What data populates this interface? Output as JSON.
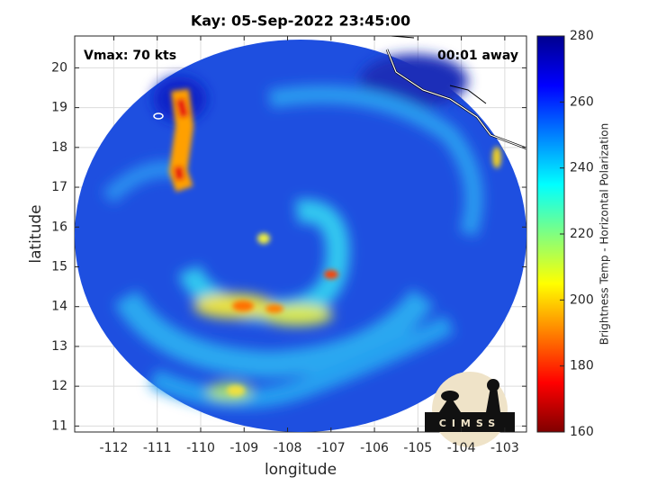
{
  "chart_data": {
    "type": "map",
    "title": "Kay: 05-Sep-2022 23:45:00",
    "annotations": [
      "Vmax: 70 kts",
      "00:01 away"
    ],
    "x_label": "longitude",
    "y_label": "latitude",
    "xlim": [
      -112.9,
      -102.5
    ],
    "ylim": [
      10.85,
      20.8
    ],
    "xticks": [
      -112,
      -111,
      -110,
      -109,
      -108,
      -107,
      -106,
      -105,
      -104,
      -103
    ],
    "yticks": [
      11,
      12,
      13,
      14,
      15,
      16,
      17,
      18,
      19,
      20
    ],
    "grid": true,
    "colorbar": {
      "label": "Brightness Temp - Horizontal Polarization",
      "lim": [
        160,
        280
      ],
      "ticks": [
        160,
        180,
        200,
        220,
        240,
        260,
        280
      ],
      "colormap": [
        "#800000",
        "#ff0000",
        "#ff8000",
        "#ffff00",
        "#80ff80",
        "#00ffff",
        "#0080ff",
        "#0000ff",
        "#00008f"
      ]
    },
    "logo": "CIMSS"
  }
}
